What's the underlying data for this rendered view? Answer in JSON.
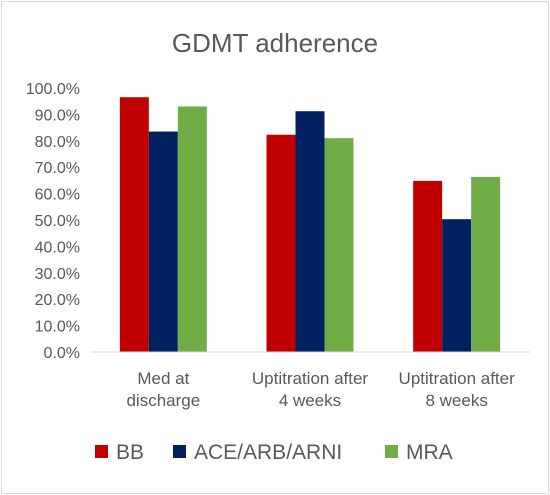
{
  "chart_data": {
    "type": "bar",
    "title": "GDMT adherence",
    "categories": [
      [
        "Med at",
        "discharge"
      ],
      [
        "Uptitration after",
        "4 weeks"
      ],
      [
        "Uptitration after",
        "8 weeks"
      ]
    ],
    "series": [
      {
        "name": "BB",
        "color": "#c00000",
        "values": [
          96.5,
          82.3,
          64.8
        ]
      },
      {
        "name": "ACE/ARB/ARNI",
        "color": "#002060",
        "values": [
          83.5,
          91.2,
          50.3
        ]
      },
      {
        "name": "MRA",
        "color": "#70ad47",
        "values": [
          93.0,
          81.0,
          66.3
        ]
      }
    ],
    "ylim": [
      0,
      100
    ],
    "yticks": [
      "0.0%",
      "10.0%",
      "20.0%",
      "30.0%",
      "40.0%",
      "50.0%",
      "60.0%",
      "70.0%",
      "80.0%",
      "90.0%",
      "100.0%"
    ],
    "grid": false,
    "legend_position": "bottom"
  }
}
